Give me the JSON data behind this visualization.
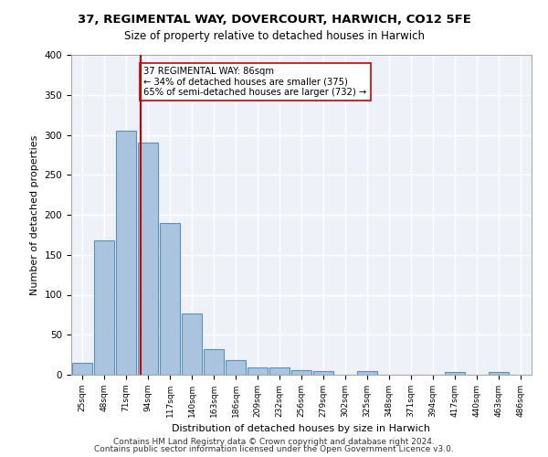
{
  "title1": "37, REGIMENTAL WAY, DOVERCOURT, HARWICH, CO12 5FE",
  "title2": "Size of property relative to detached houses in Harwich",
  "xlabel": "Distribution of detached houses by size in Harwich",
  "ylabel": "Number of detached properties",
  "categories": [
    "25sqm",
    "48sqm",
    "71sqm",
    "94sqm",
    "117sqm",
    "140sqm",
    "163sqm",
    "186sqm",
    "209sqm",
    "232sqm",
    "256sqm",
    "279sqm",
    "302sqm",
    "325sqm",
    "348sqm",
    "371sqm",
    "394sqm",
    "417sqm",
    "440sqm",
    "463sqm",
    "486sqm"
  ],
  "values": [
    15,
    168,
    305,
    290,
    190,
    77,
    32,
    18,
    9,
    9,
    6,
    5,
    0,
    5,
    0,
    0,
    0,
    3,
    0,
    3,
    0
  ],
  "bar_color": "#aac4e0",
  "bar_edge_color": "#5590c0",
  "bg_color": "#eef2f8",
  "grid_color": "#ffffff",
  "vline_x": 86,
  "vline_color": "#cc0000",
  "annotation_text": "37 REGIMENTAL WAY: 86sqm\n← 34% of detached houses are smaller (375)\n65% of semi-detached houses are larger (732) →",
  "annotation_box_color": "#ffffff",
  "annotation_box_edge": "#cc0000",
  "footer1": "Contains HM Land Registry data © Crown copyright and database right 2024.",
  "footer2": "Contains public sector information licensed under the Open Government Licence v3.0.",
  "ylim": [
    0,
    400
  ],
  "bin_width": 23
}
